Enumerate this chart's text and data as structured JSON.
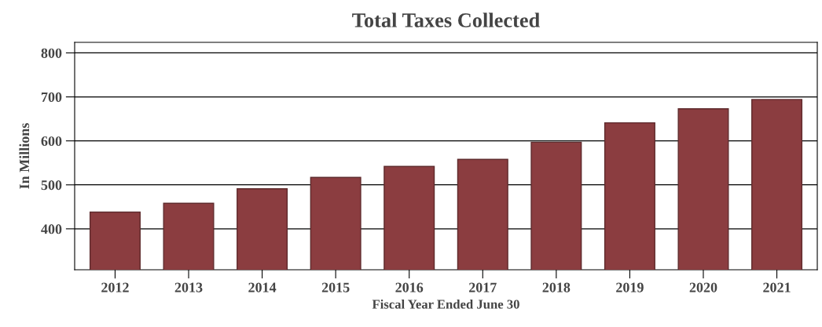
{
  "chart_data": {
    "type": "bar",
    "title": "Total Taxes Collected",
    "xlabel": "Fiscal Year Ended June 30",
    "ylabel": "In Millions",
    "categories": [
      "2012",
      "2013",
      "2014",
      "2015",
      "2016",
      "2017",
      "2018",
      "2019",
      "2020",
      "2021"
    ],
    "values": [
      438,
      458,
      491,
      517,
      542,
      558,
      597,
      641,
      673,
      694
    ],
    "color": "#8b3d40",
    "ylim": [
      307,
      824
    ],
    "yticks": [
      400,
      500,
      600,
      700,
      800
    ],
    "grid": "y"
  }
}
